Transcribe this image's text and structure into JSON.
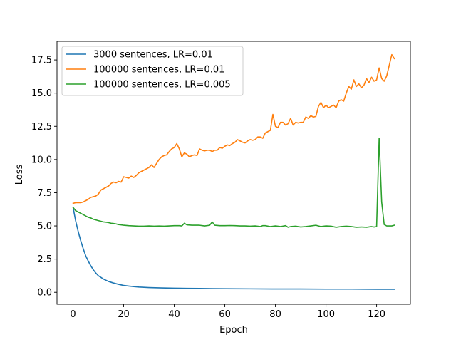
{
  "chart_data": {
    "type": "line",
    "xlabel": "Epoch",
    "ylabel": "Loss",
    "xlim": [
      -6.35,
      133.35
    ],
    "ylim": [
      -0.9,
      18.9
    ],
    "xticks": [
      0,
      20,
      40,
      60,
      80,
      100,
      120
    ],
    "yticks": [
      0.0,
      2.5,
      5.0,
      7.5,
      10.0,
      12.5,
      15.0,
      17.5
    ],
    "ytick_labels": [
      "0.0",
      "2.5",
      "5.0",
      "7.5",
      "10.0",
      "12.5",
      "15.0",
      "17.5"
    ],
    "grid": false,
    "legend_position": "top-left",
    "series": [
      {
        "name": "3000 sentences, LR=0.01",
        "color": "#1f77b4",
        "x": [
          0,
          1,
          2,
          3,
          4,
          5,
          6,
          7,
          8,
          9,
          10,
          12,
          14,
          16,
          18,
          20,
          22,
          24,
          26,
          28,
          30,
          35,
          40,
          45,
          50,
          55,
          60,
          70,
          80,
          90,
          100,
          110,
          120,
          127
        ],
        "y": [
          6.4,
          5.4,
          4.6,
          3.9,
          3.3,
          2.75,
          2.35,
          2.0,
          1.7,
          1.45,
          1.25,
          1.0,
          0.82,
          0.7,
          0.6,
          0.52,
          0.47,
          0.43,
          0.4,
          0.38,
          0.36,
          0.33,
          0.31,
          0.3,
          0.29,
          0.28,
          0.27,
          0.26,
          0.25,
          0.25,
          0.24,
          0.24,
          0.23,
          0.23
        ]
      },
      {
        "name": "100000 sentences, LR=0.01",
        "color": "#ff7f0e",
        "x": [
          0,
          1,
          2,
          3,
          4,
          5,
          6,
          7,
          8,
          9,
          10,
          11,
          12,
          13,
          14,
          15,
          16,
          17,
          18,
          19,
          20,
          21,
          22,
          23,
          24,
          25,
          26,
          27,
          28,
          29,
          30,
          31,
          32,
          33,
          34,
          35,
          36,
          37,
          38,
          39,
          40,
          41,
          42,
          43,
          44,
          45,
          46,
          47,
          48,
          49,
          50,
          51,
          52,
          53,
          54,
          55,
          56,
          57,
          58,
          59,
          60,
          61,
          62,
          63,
          64,
          65,
          66,
          67,
          68,
          69,
          70,
          71,
          72,
          73,
          74,
          75,
          76,
          77,
          78,
          79,
          80,
          81,
          82,
          83,
          84,
          85,
          86,
          87,
          88,
          89,
          90,
          91,
          92,
          93,
          94,
          95,
          96,
          97,
          98,
          99,
          100,
          101,
          102,
          103,
          104,
          105,
          106,
          107,
          108,
          109,
          110,
          111,
          112,
          113,
          114,
          115,
          116,
          117,
          118,
          119,
          120,
          121,
          122,
          123,
          124,
          125,
          126,
          127
        ],
        "y": [
          6.7,
          6.75,
          6.75,
          6.75,
          6.8,
          6.9,
          7.0,
          7.15,
          7.2,
          7.25,
          7.4,
          7.7,
          7.8,
          7.9,
          8.0,
          8.2,
          8.3,
          8.25,
          8.35,
          8.3,
          8.7,
          8.65,
          8.6,
          8.75,
          8.65,
          8.8,
          9.0,
          9.1,
          9.2,
          9.3,
          9.4,
          9.6,
          9.4,
          9.7,
          10.0,
          10.2,
          10.3,
          10.35,
          10.6,
          10.8,
          10.9,
          11.2,
          10.8,
          10.2,
          10.5,
          10.4,
          10.2,
          10.3,
          10.35,
          10.3,
          10.8,
          10.7,
          10.65,
          10.7,
          10.7,
          10.6,
          10.7,
          10.7,
          10.9,
          10.85,
          11.0,
          11.1,
          11.05,
          11.2,
          11.3,
          11.5,
          11.4,
          11.3,
          11.25,
          11.4,
          11.5,
          11.45,
          11.5,
          11.7,
          11.7,
          11.6,
          12.0,
          12.1,
          12.2,
          13.4,
          12.5,
          12.4,
          12.8,
          12.8,
          12.6,
          12.7,
          13.1,
          12.6,
          12.8,
          12.75,
          12.8,
          12.8,
          13.2,
          13.1,
          13.3,
          13.2,
          13.25,
          14.0,
          14.3,
          13.9,
          14.1,
          13.9,
          14.0,
          14.1,
          13.9,
          14.4,
          14.5,
          14.4,
          15.0,
          15.5,
          15.3,
          16.0,
          15.5,
          15.7,
          15.4,
          15.6,
          16.1,
          15.8,
          16.2,
          15.9,
          16.0,
          16.9,
          16.1,
          15.9,
          16.3,
          17.1,
          17.9,
          17.6
        ]
      },
      {
        "name": "100000 sentences, LR=0.005",
        "color": "#2ca02c",
        "x": [
          0,
          1,
          2,
          3,
          4,
          5,
          6,
          7,
          8,
          9,
          10,
          11,
          12,
          13,
          14,
          15,
          16,
          17,
          18,
          19,
          20,
          22,
          24,
          26,
          28,
          30,
          32,
          34,
          36,
          38,
          40,
          42,
          43,
          44,
          45,
          47,
          50,
          52,
          54,
          55,
          56,
          58,
          60,
          62,
          64,
          66,
          68,
          70,
          72,
          74,
          75,
          76,
          78,
          80,
          82,
          84,
          85,
          86,
          88,
          90,
          92,
          94,
          96,
          98,
          100,
          102,
          104,
          106,
          108,
          110,
          112,
          114,
          116,
          118,
          119,
          120,
          121,
          122,
          123,
          124,
          125,
          126,
          127
        ],
        "y": [
          6.4,
          6.15,
          6.05,
          5.95,
          5.85,
          5.75,
          5.65,
          5.6,
          5.5,
          5.45,
          5.4,
          5.35,
          5.3,
          5.28,
          5.25,
          5.2,
          5.18,
          5.15,
          5.1,
          5.08,
          5.05,
          5.02,
          5.0,
          4.98,
          4.98,
          5.0,
          4.98,
          4.99,
          4.98,
          5.0,
          5.02,
          5.02,
          5.0,
          5.2,
          5.08,
          5.05,
          5.05,
          5.0,
          5.05,
          5.3,
          5.05,
          5.02,
          5.02,
          5.03,
          5.02,
          5.0,
          5.0,
          4.98,
          5.0,
          4.95,
          5.02,
          5.02,
          4.95,
          5.0,
          4.95,
          5.02,
          4.9,
          4.95,
          4.98,
          4.92,
          4.95,
          5.0,
          5.05,
          4.95,
          5.0,
          4.98,
          4.9,
          4.95,
          4.98,
          4.95,
          4.9,
          4.92,
          4.9,
          4.95,
          4.92,
          4.95,
          11.6,
          6.8,
          5.1,
          5.0,
          5.0,
          5.0,
          5.05
        ]
      }
    ]
  }
}
